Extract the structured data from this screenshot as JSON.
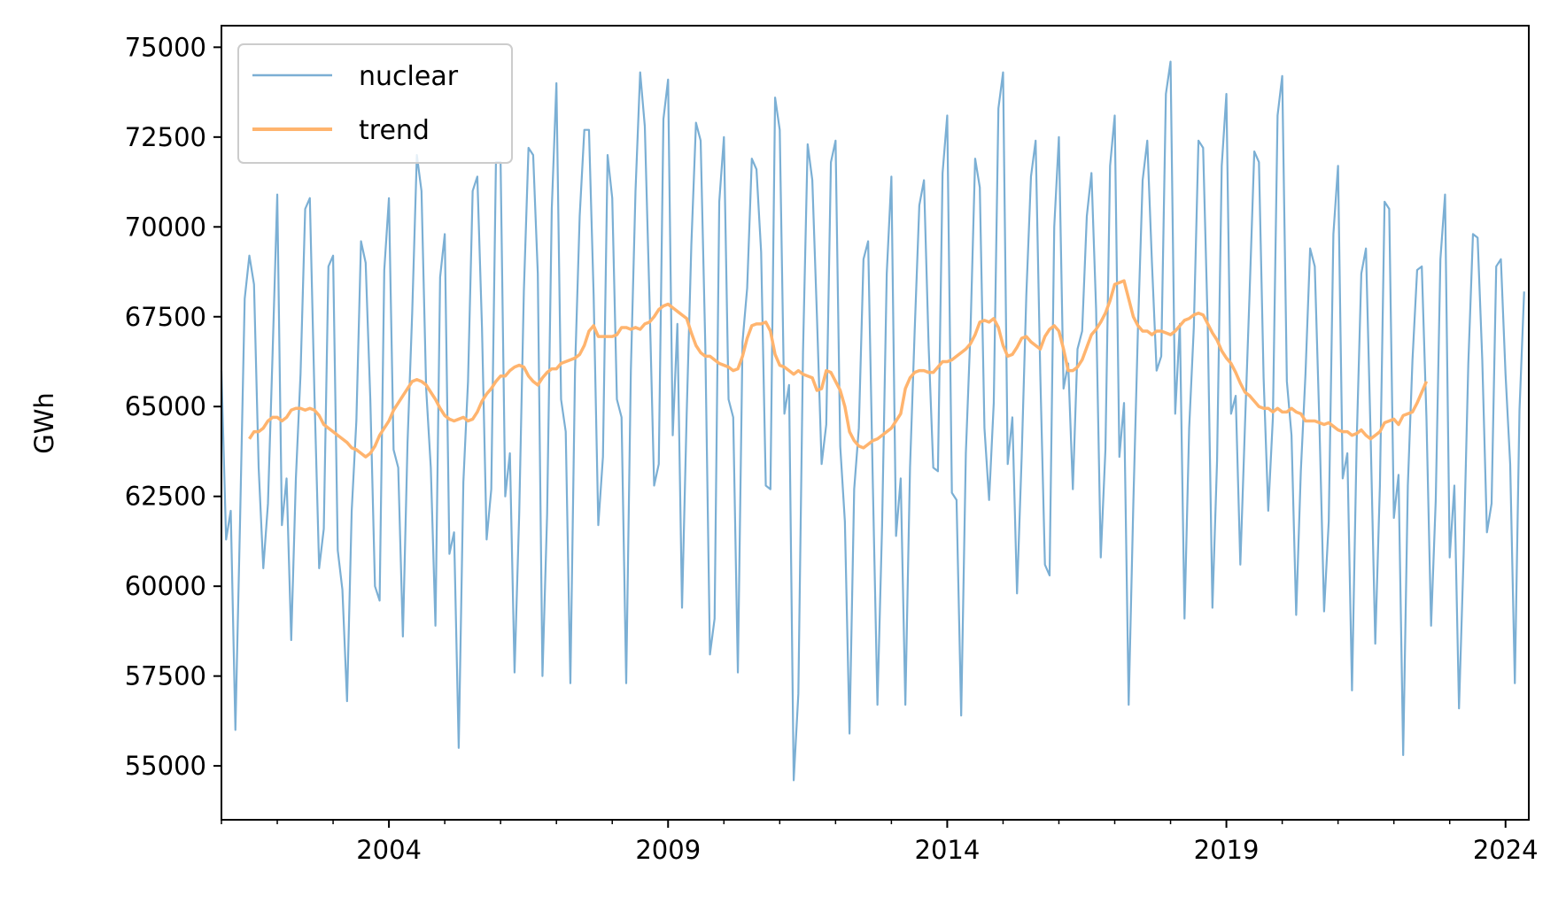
{
  "colors": {
    "nuclear": "#7bafd4",
    "trend": "#ffb46e"
  },
  "chart_data": {
    "type": "line",
    "title": "",
    "xlabel": "",
    "ylabel": "GWh",
    "xlim": [
      "2001-01",
      "2024-06"
    ],
    "ylim": [
      53500,
      75600
    ],
    "yticks": [
      55000,
      57500,
      60000,
      62500,
      65000,
      67500,
      70000,
      72500,
      75000
    ],
    "xticks": [
      {
        "label": "2004",
        "date": "2004-01"
      },
      {
        "label": "2009",
        "date": "2009-01"
      },
      {
        "label": "2014",
        "date": "2014-01"
      },
      {
        "label": "2019",
        "date": "2019-01"
      },
      {
        "label": "2024",
        "date": "2024-01"
      }
    ],
    "grid": false,
    "legend_position": "top-left",
    "start_date": "2001-01",
    "series": [
      {
        "name": "nuclear",
        "values": [
          66000,
          61300,
          62100,
          56000,
          61800,
          68000,
          69200,
          68400,
          63300,
          60500,
          62300,
          66500,
          70900,
          61700,
          63000,
          58500,
          63000,
          65900,
          70500,
          70800,
          65300,
          60500,
          61600,
          68900,
          69200,
          61000,
          59900,
          56800,
          62100,
          64600,
          69600,
          69000,
          65200,
          60000,
          59600,
          68800,
          70800,
          63800,
          63300,
          58600,
          64000,
          67600,
          72000,
          71000,
          65500,
          63300,
          58900,
          68600,
          69800,
          60900,
          61500,
          55500,
          62900,
          65700,
          71000,
          71400,
          67200,
          61300,
          62700,
          71800,
          71800,
          62500,
          63700,
          57600,
          62000,
          68200,
          72200,
          72000,
          68700,
          57500,
          62000,
          70500,
          74000,
          65200,
          64300,
          57300,
          66000,
          70300,
          72700,
          72700,
          68100,
          61700,
          63600,
          72000,
          70800,
          65200,
          64700,
          57300,
          66000,
          71000,
          74300,
          72800,
          68000,
          62800,
          63400,
          73000,
          74100,
          64200,
          67300,
          59400,
          64800,
          69500,
          72900,
          72400,
          66700,
          58100,
          59100,
          70700,
          72500,
          65200,
          64700,
          57600,
          66800,
          68300,
          71900,
          71600,
          69300,
          62800,
          62700,
          73600,
          72700,
          64800,
          65600,
          54600,
          57000,
          66500,
          72300,
          71300,
          67500,
          63400,
          64500,
          71800,
          72400,
          63900,
          61800,
          55900,
          62700,
          64400,
          69100,
          69600,
          62900,
          56700,
          61700,
          68700,
          71400,
          61400,
          63000,
          56700,
          63300,
          67100,
          70600,
          71300,
          66700,
          63300,
          63200,
          71500,
          73100,
          62600,
          62400,
          56400,
          63700,
          67100,
          71900,
          71100,
          64400,
          62400,
          65100,
          73300,
          74300,
          63400,
          64700,
          59800,
          63600,
          68100,
          71400,
          72400,
          65900,
          60600,
          60300,
          70000,
          72500,
          65500,
          66200,
          62700,
          66600,
          67100,
          70300,
          71500,
          67700,
          60800,
          63800,
          71700,
          73100,
          63600,
          65100,
          56700,
          62300,
          67200,
          71300,
          72400,
          69000,
          66000,
          66400,
          73700,
          74600,
          64800,
          67300,
          59100,
          64400,
          67200,
          72400,
          72200,
          67200,
          59400,
          63500,
          71700,
          73700,
          64800,
          65300,
          60600,
          64500,
          68200,
          72100,
          71800,
          65800,
          62100,
          64700,
          73100,
          74200,
          65700,
          64200,
          59200,
          63200,
          65900,
          69400,
          68900,
          64500,
          59300,
          61800,
          69800,
          71700,
          63000,
          63700,
          57100,
          64000,
          68700,
          69400,
          64200,
          58400,
          62800,
          70700,
          70500,
          61900,
          63100,
          55300,
          62800,
          66300,
          68800,
          68900,
          64700,
          58900,
          62400,
          69100,
          70900,
          60800,
          62800,
          56600,
          60900,
          66200,
          69800,
          69700,
          66300,
          61500,
          62300,
          68900,
          69100,
          65900,
          63400,
          57300,
          64900,
          68200
        ]
      },
      {
        "name": "trend",
        "values": [
          null,
          null,
          null,
          null,
          null,
          null,
          64100,
          64300,
          64300,
          64400,
          64600,
          64700,
          64700,
          64600,
          64700,
          64900,
          64950,
          64950,
          64900,
          64950,
          64900,
          64750,
          64500,
          64400,
          64300,
          64200,
          64100,
          64000,
          63850,
          63800,
          63700,
          63600,
          63700,
          63900,
          64200,
          64400,
          64600,
          64900,
          65100,
          65300,
          65500,
          65700,
          65750,
          65700,
          65600,
          65400,
          65200,
          64950,
          64750,
          64650,
          64600,
          64650,
          64700,
          64600,
          64650,
          64850,
          65150,
          65350,
          65500,
          65700,
          65850,
          65850,
          66000,
          66100,
          66150,
          66100,
          65850,
          65700,
          65600,
          65800,
          65950,
          66050,
          66050,
          66200,
          66250,
          66300,
          66350,
          66450,
          66700,
          67100,
          67250,
          66950,
          66950,
          66950,
          66950,
          67000,
          67200,
          67200,
          67150,
          67200,
          67150,
          67300,
          67350,
          67500,
          67700,
          67800,
          67850,
          67750,
          67650,
          67550,
          67450,
          67050,
          66700,
          66500,
          66400,
          66400,
          66300,
          66200,
          66150,
          66100,
          66000,
          66050,
          66400,
          66900,
          67250,
          67300,
          67300,
          67350,
          67100,
          66450,
          66150,
          66100,
          66000,
          65900,
          66000,
          65900,
          65850,
          65800,
          65450,
          65500,
          66000,
          65950,
          65700,
          65450,
          65000,
          64300,
          64050,
          63900,
          63850,
          63950,
          64050,
          64100,
          64200,
          64300,
          64400,
          64600,
          64800,
          65500,
          65800,
          65950,
          66000,
          66000,
          65950,
          65950,
          66100,
          66250,
          66250,
          66300,
          66400,
          66500,
          66600,
          66750,
          67000,
          67350,
          67400,
          67350,
          67450,
          67200,
          66700,
          66400,
          66450,
          66650,
          66900,
          66950,
          66800,
          66700,
          66600,
          66950,
          67150,
          67250,
          67100,
          66600,
          66000,
          66000,
          66100,
          66300,
          66650,
          67000,
          67150,
          67350,
          67600,
          67950,
          68400,
          68450,
          68500,
          68000,
          67500,
          67250,
          67100,
          67100,
          67000,
          67100,
          67100,
          67050,
          67000,
          67100,
          67250,
          67400,
          67450,
          67550,
          67600,
          67550,
          67300,
          67050,
          66850,
          66550,
          66350,
          66200,
          65950,
          65650,
          65400,
          65300,
          65150,
          65000,
          64950,
          64950,
          64850,
          64950,
          64850,
          64850,
          64950,
          64850,
          64800,
          64600,
          64600,
          64600,
          64550,
          64500,
          64550,
          64450,
          64350,
          64300,
          64300,
          64200,
          64250,
          64350,
          64200,
          64100,
          64200,
          64300,
          64550,
          64600,
          64650,
          64500,
          64750,
          64800,
          64850,
          65100,
          65400,
          65700
        ]
      }
    ]
  }
}
